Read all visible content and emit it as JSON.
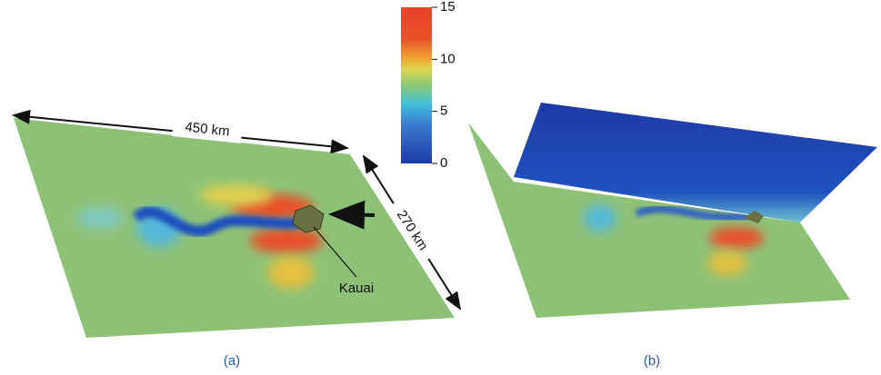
{
  "figure": {
    "colorbar": {
      "range": [
        0,
        15
      ],
      "ticks": [
        0,
        5,
        10,
        15
      ]
    },
    "panel_a": {
      "label": "(a)",
      "width_label": "450 km",
      "depth_label": "270 km",
      "island_label": "Kauai"
    },
    "panel_b": {
      "label": "(b)"
    }
  }
}
